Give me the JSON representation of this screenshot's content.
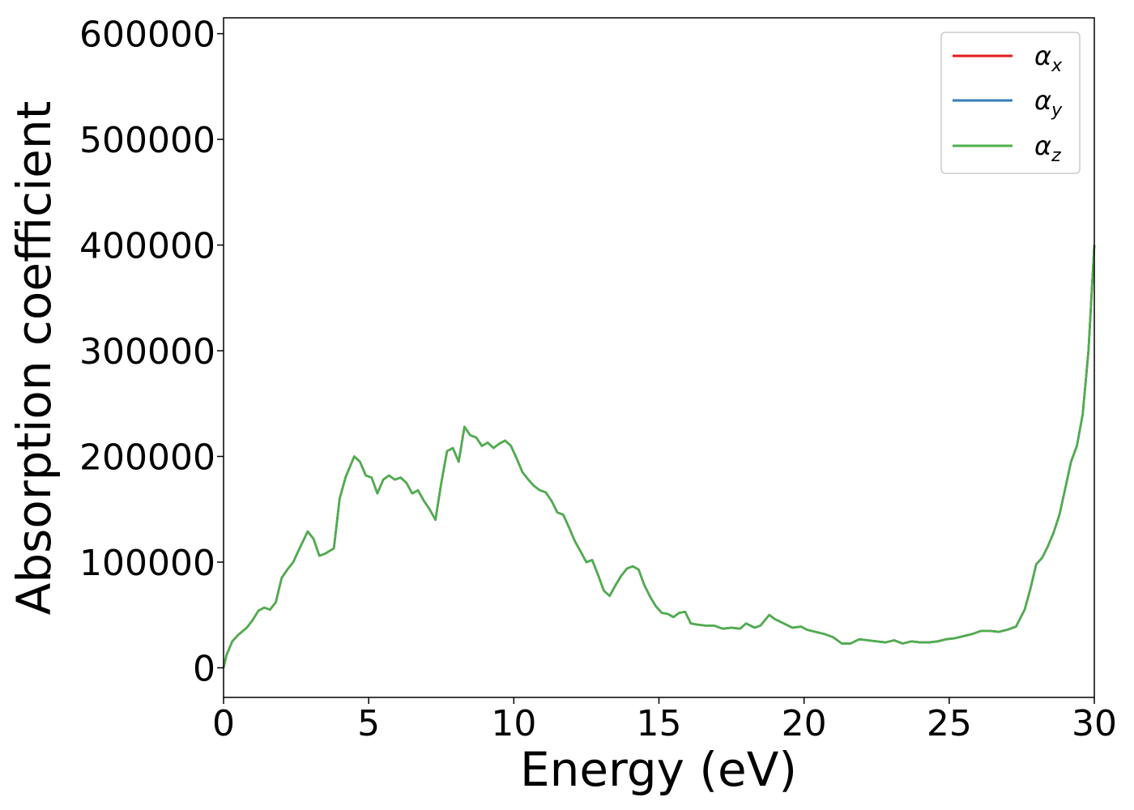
{
  "chart_data": {
    "type": "line",
    "title": "",
    "xlabel": "Energy (eV)",
    "ylabel": "Absorption coefficient",
    "xlim": [
      0,
      30
    ],
    "ylim": [
      -28000,
      615000
    ],
    "xticks": [
      "0",
      "5",
      "10",
      "15",
      "20",
      "25",
      "30"
    ],
    "yticks": [
      "0",
      "100000",
      "200000",
      "300000",
      "400000",
      "500000",
      "600000"
    ],
    "xtick_values": [
      0,
      5,
      10,
      15,
      20,
      25,
      30
    ],
    "ytick_values": [
      0,
      100000,
      200000,
      300000,
      400000,
      500000,
      600000
    ],
    "grid": false,
    "legend_position": "top-right",
    "series": [
      {
        "name": "α",
        "subscript": "x",
        "color": "#e41a1c",
        "x": [
          0,
          0.1,
          0.3,
          0.5,
          0.8,
          1.0,
          1.2,
          1.4,
          1.6,
          1.8,
          2.0,
          2.2,
          2.4,
          2.6,
          2.9,
          3.1,
          3.3,
          3.5,
          3.8,
          4.0,
          4.2,
          4.5,
          4.7,
          4.9,
          5.1,
          5.3,
          5.5,
          5.7,
          5.9,
          6.1,
          6.3,
          6.5,
          6.7,
          6.9,
          7.1,
          7.3,
          7.5,
          7.7,
          7.9,
          8.1,
          8.3,
          8.5,
          8.7,
          8.9,
          9.1,
          9.3,
          9.5,
          9.7,
          9.9,
          10.1,
          10.3,
          10.5,
          10.7,
          10.9,
          11.1,
          11.3,
          11.5,
          11.7,
          11.9,
          12.1,
          12.3,
          12.5,
          12.7,
          12.9,
          13.1,
          13.3,
          13.5,
          13.7,
          13.9,
          14.1,
          14.3,
          14.5,
          14.7,
          14.9,
          15.1,
          15.3,
          15.5,
          15.7,
          15.9,
          16.1,
          16.3,
          16.6,
          16.9,
          17.2,
          17.5,
          17.8,
          18.0,
          18.3,
          18.5,
          18.8,
          19.0,
          19.3,
          19.6,
          19.9,
          20.1,
          20.4,
          20.7,
          21.0,
          21.3,
          21.6,
          21.9,
          22.2,
          22.5,
          22.8,
          23.1,
          23.4,
          23.7,
          24.0,
          24.3,
          24.6,
          24.9,
          25.2,
          25.5,
          25.8,
          26.1,
          26.4,
          26.7,
          27.0,
          27.3,
          27.6,
          27.8,
          28.0,
          28.2,
          28.4,
          28.6,
          28.8,
          29.0,
          29.2,
          29.4,
          29.6,
          29.8,
          30.0
        ],
        "y": [
          0,
          12000,
          25000,
          31000,
          38000,
          45000,
          54000,
          57000,
          55000,
          62000,
          85000,
          93000,
          100000,
          112000,
          129000,
          122000,
          106000,
          108000,
          113000,
          160000,
          180000,
          200000,
          195000,
          182000,
          180000,
          165000,
          178000,
          182000,
          178000,
          180000,
          175000,
          165000,
          168000,
          158000,
          150000,
          140000,
          175000,
          205000,
          208000,
          195000,
          228000,
          220000,
          218000,
          210000,
          213000,
          208000,
          212000,
          215000,
          210000,
          198000,
          185000,
          178000,
          172000,
          168000,
          166000,
          158000,
          147000,
          145000,
          133000,
          120000,
          110000,
          100000,
          102000,
          88000,
          73000,
          68000,
          78000,
          87000,
          94000,
          96000,
          93000,
          78000,
          67000,
          58000,
          52000,
          51000,
          48000,
          52000,
          53000,
          42000,
          41000,
          40000,
          40000,
          37000,
          38000,
          37000,
          42000,
          38000,
          40000,
          50000,
          46000,
          42000,
          38000,
          39000,
          36000,
          34000,
          32000,
          29000,
          23000,
          23000,
          27000,
          26000,
          25000,
          24000,
          26000,
          23000,
          25000,
          24000,
          24000,
          25000,
          27000,
          28000,
          30000,
          32000,
          35000,
          35000,
          34000,
          36000,
          39000,
          55000,
          75000,
          98000,
          104000,
          115000,
          128000,
          145000,
          170000,
          195000,
          210000,
          240000,
          300000,
          400000
        ]
      },
      {
        "name": "α",
        "subscript": "y",
        "color": "#377eb8"
      },
      {
        "name": "α",
        "subscript": "z",
        "color": "#4daf4a"
      }
    ]
  }
}
